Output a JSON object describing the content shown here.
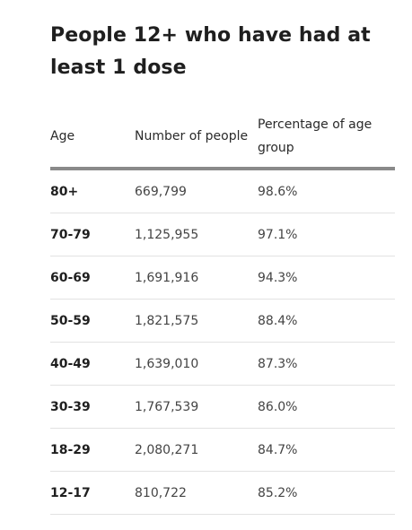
{
  "title": "People 12+ who have had at least 1 dose",
  "table": {
    "headers": {
      "age": "Age",
      "number": "Number of people",
      "percentage": "Percentage of age group"
    },
    "rows": [
      {
        "age": "80+",
        "number": "669,799",
        "percentage": "98.6%"
      },
      {
        "age": "70-79",
        "number": "1,125,955",
        "percentage": "97.1%"
      },
      {
        "age": "60-69",
        "number": "1,691,916",
        "percentage": "94.3%"
      },
      {
        "age": "50-59",
        "number": "1,821,575",
        "percentage": "88.4%"
      },
      {
        "age": "40-49",
        "number": "1,639,010",
        "percentage": "87.3%"
      },
      {
        "age": "30-39",
        "number": "1,767,539",
        "percentage": "86.0%"
      },
      {
        "age": "18-29",
        "number": "2,080,271",
        "percentage": "84.7%"
      },
      {
        "age": "12-17",
        "number": "810,722",
        "percentage": "85.2%"
      }
    ]
  }
}
